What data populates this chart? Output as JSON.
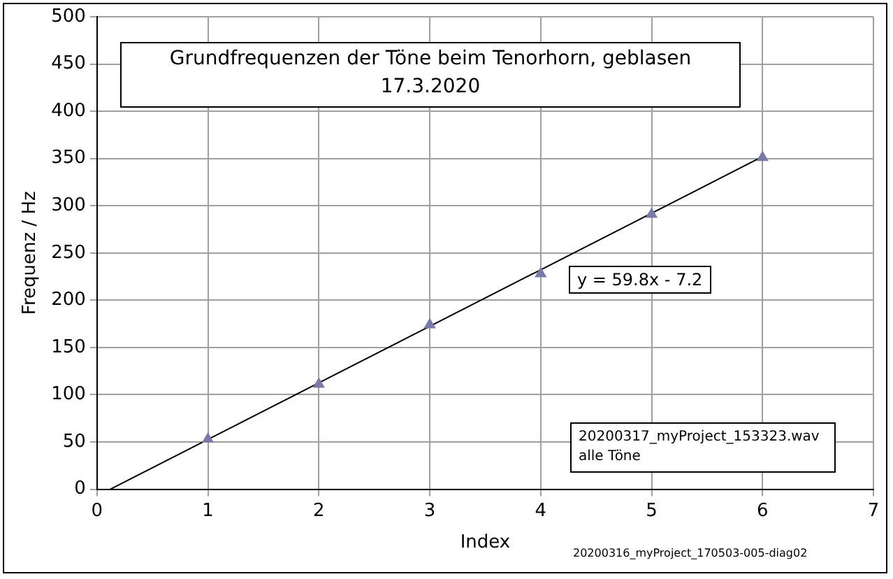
{
  "chart_data": {
    "type": "scatter",
    "title": "Grundfrequenzen der Töne beim Tenorhorn, geblasen",
    "subtitle": "17.3.2020",
    "xlabel": "Index",
    "ylabel": "Frequenz / Hz",
    "annotations": [
      "y = 59.8x - 7.2",
      "20200317_myProject_153323.wav\nalle Töne",
      "20200316_myProject_170503-005-diag02"
    ],
    "series": [
      {
        "color": "#7a7aa8",
        "x": [
          1,
          2,
          3,
          4,
          5,
          6
        ],
        "values": [
          53,
          111,
          174,
          228,
          291,
          351
        ],
        "marker": "triangle"
      },
      {
        "type": "line",
        "color": "#000000",
        "x": [
          0.12,
          6
        ],
        "values": [
          0,
          352
        ],
        "marker": "none"
      }
    ],
    "xlim": [
      0,
      7
    ],
    "xticks": [
      0,
      1,
      2,
      3,
      4,
      5,
      6,
      7
    ],
    "ylim": [
      0,
      500
    ],
    "yticks": [
      0,
      50,
      100,
      150,
      200,
      250,
      300,
      350,
      400,
      450,
      500
    ],
    "grid": true,
    "legend": false
  }
}
